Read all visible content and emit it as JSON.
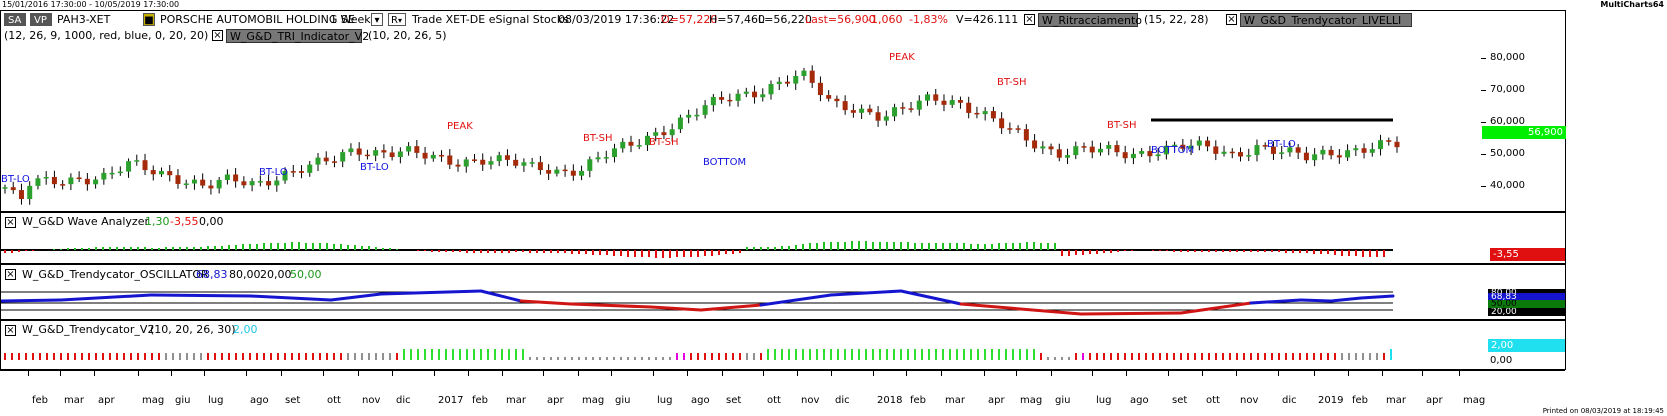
{
  "window": {
    "date_range": "15/01/2016 17:30:00 - 10/05/2019 17:30:00",
    "app_name": "MultiCharts64"
  },
  "header": {
    "sa_label": "SA",
    "vp_label": "VP",
    "symbol": "PAH3-XET",
    "instrument_name": "PORSCHE AUTOMOBIL HOLDING SE",
    "timeframe": "1 Week",
    "r_label": "R",
    "feed": "Trade  XET-DE  eSignal  Stocks",
    "datetime": "08/03/2019  17:36:22",
    "open_label": "O=57,220",
    "high_label": "H=57,460",
    "low_label": "L=56,220",
    "last_label": "Last=56,900",
    "change": "-1,060",
    "change_pct": "-1,83%",
    "volume_label": "V=426.111",
    "ind1_name": "W_Ritracciamento",
    "ind1_params": "(15,  22,  28)",
    "ind2_name": "W_G&D_Trendycator_LIVELLI",
    "ind2_params": "(12,  26,  9,  1000,  red,  blue,  0,  20,  20)",
    "ind3_name": "W_G&D_TRI_Indicator_V2",
    "ind3_params": "(10,  20,  26,  5)"
  },
  "price_pane": {
    "axis_ticks": [
      "80,000",
      "70,000",
      "60,000",
      "50,000",
      "40,000"
    ],
    "last_price_tag": "56,900",
    "annotations": [
      "PEAK",
      "BT-SH",
      "BT-SH",
      "BT-SH",
      "BT-SH",
      "PEAK",
      "BT-LO",
      "BT-LO",
      "BT-LO",
      "BOTTOM",
      "BOTTOM",
      "BT-LO"
    ]
  },
  "wave_pane": {
    "title": "W_G&D Wave Analyzer",
    "value1": "1,30",
    "value2": "-3,55",
    "value3": "0,00",
    "axis_tag": "-3,55"
  },
  "osc_pane": {
    "title": "W_G&D_Trendycator_OSCILLATOR",
    "value1": "68,83",
    "value2": "80,00",
    "value3": "20,00",
    "value4": "50,00",
    "tags": [
      "80,00",
      "68,83",
      "50,00",
      "20,00"
    ]
  },
  "trend_pane": {
    "title": "W_G&D_Trendycator_V2",
    "params": "(10,  20,  26,  30)",
    "value": "2,00",
    "tag": "2,00",
    "axis_tick": "0,00"
  },
  "time_axis": {
    "labels": [
      "feb",
      "mar",
      "apr",
      "mag",
      "giu",
      "lug",
      "ago",
      "set",
      "ott",
      "nov",
      "dic",
      "2017",
      "feb",
      "mar",
      "apr",
      "mag",
      "giu",
      "lug",
      "ago",
      "set",
      "ott",
      "nov",
      "dic",
      "2018",
      "feb",
      "mar",
      "apr",
      "mag",
      "giu",
      "lug",
      "ago",
      "set",
      "ott",
      "nov",
      "dic",
      "2019",
      "feb",
      "mar",
      "apr",
      "mag"
    ]
  },
  "footer": {
    "printed": "Printed on 08/03/2019 at 18:19:45"
  },
  "colors": {
    "bull": "#2ca02c",
    "bear": "#a52a0a",
    "osc_up": "#1515d0",
    "osc_down": "#d01515",
    "last_tag": "#00e000",
    "cyan": "#20e0f0",
    "magenta": "#e000e0",
    "gray": "#909090"
  }
}
